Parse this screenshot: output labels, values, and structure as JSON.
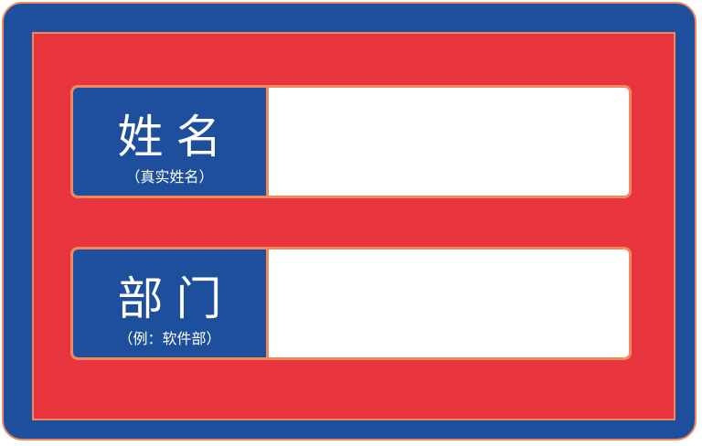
{
  "badge": {
    "colors": {
      "outer": "#1d4f9c",
      "inner": "#e8343d",
      "border": "#f08a5d",
      "field": "#ffffff",
      "label_text": "#ffffff"
    },
    "fields": [
      {
        "label": "姓名",
        "hint": "（真实姓名）",
        "value": ""
      },
      {
        "label": "部门",
        "hint": "（例：软件部）",
        "value": ""
      }
    ]
  }
}
